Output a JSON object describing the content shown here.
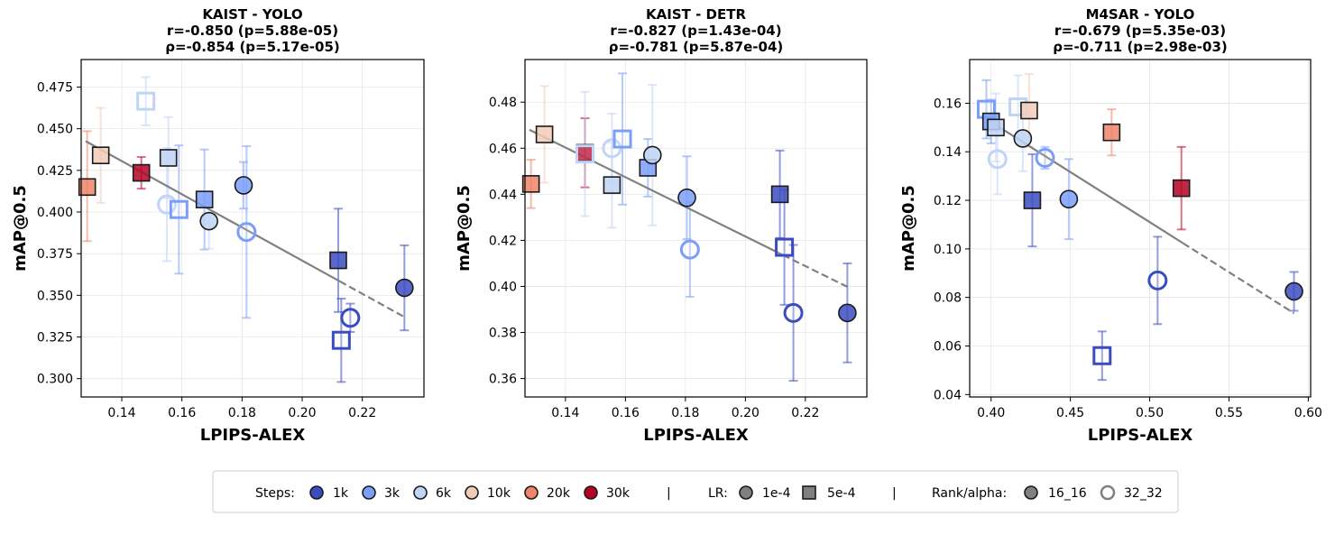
{
  "chart_data": [
    {
      "type": "scatter",
      "title": [
        "KAIST - YOLO",
        "r=-0.850 (p=5.88e-05)",
        "ρ=-0.854 (p=5.17e-05)"
      ],
      "xlabel": "LPIPS-ALEX",
      "ylabel": "mAP@0.5",
      "xlim": [
        0.1265,
        0.2405
      ],
      "ylim": [
        0.289,
        0.4915
      ],
      "xticks": [
        0.14,
        0.16,
        0.18,
        0.2,
        0.22
      ],
      "yticks": [
        0.3,
        0.325,
        0.35,
        0.375,
        0.4,
        0.425,
        0.45,
        0.475
      ],
      "tick_decimals": 2,
      "ytick_decimals": 3,
      "fit": {
        "x0": 0.128,
        "y0": 0.4425,
        "x1": 0.2345,
        "y1": 0.3365,
        "solid_until": 0.2125
      },
      "points": [
        {
          "x": 0.1285,
          "y": 0.415,
          "lo": 0.3825,
          "hi": 0.4485,
          "steps": "20k",
          "lr": "5e-4",
          "rank": "16_16"
        },
        {
          "x": 0.133,
          "y": 0.434,
          "lo": 0.4055,
          "hi": 0.4625,
          "steps": "10k",
          "lr": "5e-4",
          "rank": "16_16"
        },
        {
          "x": 0.1465,
          "y": 0.4235,
          "lo": 0.414,
          "hi": 0.433,
          "steps": "30k",
          "lr": "5e-4",
          "rank": "16_16"
        },
        {
          "x": 0.148,
          "y": 0.4665,
          "lo": 0.452,
          "hi": 0.481,
          "steps": "6k",
          "lr": "5e-4",
          "rank": "32_32"
        },
        {
          "x": 0.1555,
          "y": 0.4325,
          "lo": 0.408,
          "hi": 0.457,
          "steps": "6k",
          "lr": "5e-4",
          "rank": "16_16"
        },
        {
          "x": 0.155,
          "y": 0.4045,
          "lo": 0.3705,
          "hi": 0.4385,
          "steps": "6k",
          "lr": "1e-4",
          "rank": "32_32"
        },
        {
          "x": 0.159,
          "y": 0.4015,
          "lo": 0.363,
          "hi": 0.44,
          "steps": "3k",
          "lr": "5e-4",
          "rank": "32_32"
        },
        {
          "x": 0.1675,
          "y": 0.4075,
          "lo": 0.3775,
          "hi": 0.4375,
          "steps": "3k",
          "lr": "5e-4",
          "rank": "16_16"
        },
        {
          "x": 0.169,
          "y": 0.3945,
          "lo": 0.378,
          "hi": 0.411,
          "steps": "6k",
          "lr": "1e-4",
          "rank": "16_16"
        },
        {
          "x": 0.1805,
          "y": 0.416,
          "lo": 0.402,
          "hi": 0.43,
          "steps": "3k",
          "lr": "1e-4",
          "rank": "16_16"
        },
        {
          "x": 0.1815,
          "y": 0.388,
          "lo": 0.3365,
          "hi": 0.4395,
          "steps": "3k",
          "lr": "1e-4",
          "rank": "32_32"
        },
        {
          "x": 0.212,
          "y": 0.371,
          "lo": 0.34,
          "hi": 0.402,
          "steps": "1k",
          "lr": "5e-4",
          "rank": "16_16"
        },
        {
          "x": 0.213,
          "y": 0.323,
          "lo": 0.298,
          "hi": 0.348,
          "steps": "1k",
          "lr": "5e-4",
          "rank": "32_32"
        },
        {
          "x": 0.216,
          "y": 0.3365,
          "lo": 0.328,
          "hi": 0.345,
          "steps": "1k",
          "lr": "1e-4",
          "rank": "32_32"
        },
        {
          "x": 0.234,
          "y": 0.3545,
          "lo": 0.329,
          "hi": 0.38,
          "steps": "1k",
          "lr": "1e-4",
          "rank": "16_16"
        }
      ]
    },
    {
      "type": "scatter",
      "title": [
        "KAIST - DETR",
        "r=-0.827 (p=1.43e-04)",
        "ρ=-0.781 (p=5.87e-04)"
      ],
      "xlabel": "LPIPS-ALEX",
      "ylabel": "mAP@0.5",
      "xlim": [
        0.1265,
        0.2405
      ],
      "ylim": [
        0.352,
        0.4985
      ],
      "xticks": [
        0.14,
        0.16,
        0.18,
        0.2,
        0.22
      ],
      "yticks": [
        0.36,
        0.38,
        0.4,
        0.42,
        0.44,
        0.46,
        0.48
      ],
      "tick_decimals": 2,
      "ytick_decimals": 2,
      "fit": {
        "x0": 0.128,
        "y0": 0.468,
        "x1": 0.2345,
        "y1": 0.3995,
        "solid_until": 0.2125
      },
      "points": [
        {
          "x": 0.1285,
          "y": 0.4445,
          "lo": 0.434,
          "hi": 0.455,
          "steps": "20k",
          "lr": "5e-4",
          "rank": "16_16"
        },
        {
          "x": 0.133,
          "y": 0.466,
          "lo": 0.445,
          "hi": 0.487,
          "steps": "10k",
          "lr": "5e-4",
          "rank": "16_16"
        },
        {
          "x": 0.1465,
          "y": 0.458,
          "lo": 0.443,
          "hi": 0.473,
          "steps": "30k",
          "lr": "5e-4",
          "rank": "16_16"
        },
        {
          "x": 0.1465,
          "y": 0.4575,
          "lo": 0.4305,
          "hi": 0.4845,
          "steps": "6k",
          "lr": "5e-4",
          "rank": "32_32"
        },
        {
          "x": 0.1555,
          "y": 0.46,
          "lo": 0.445,
          "hi": 0.475,
          "steps": "6k",
          "lr": "1e-4",
          "rank": "32_32"
        },
        {
          "x": 0.1555,
          "y": 0.444,
          "lo": 0.4255,
          "hi": 0.4625,
          "steps": "6k",
          "lr": "5e-4",
          "rank": "16_16"
        },
        {
          "x": 0.159,
          "y": 0.464,
          "lo": 0.4355,
          "hi": 0.4925,
          "steps": "3k",
          "lr": "5e-4",
          "rank": "32_32"
        },
        {
          "x": 0.1675,
          "y": 0.4515,
          "lo": 0.439,
          "hi": 0.464,
          "steps": "3k",
          "lr": "5e-4",
          "rank": "16_16"
        },
        {
          "x": 0.169,
          "y": 0.457,
          "lo": 0.4265,
          "hi": 0.4875,
          "steps": "6k",
          "lr": "1e-4",
          "rank": "16_16"
        },
        {
          "x": 0.1805,
          "y": 0.4385,
          "lo": 0.4205,
          "hi": 0.4565,
          "steps": "3k",
          "lr": "1e-4",
          "rank": "16_16"
        },
        {
          "x": 0.1815,
          "y": 0.416,
          "lo": 0.3955,
          "hi": 0.4365,
          "steps": "3k",
          "lr": "1e-4",
          "rank": "32_32"
        },
        {
          "x": 0.2115,
          "y": 0.44,
          "lo": 0.421,
          "hi": 0.459,
          "steps": "1k",
          "lr": "5e-4",
          "rank": "16_16"
        },
        {
          "x": 0.213,
          "y": 0.417,
          "lo": 0.392,
          "hi": 0.442,
          "steps": "1k",
          "lr": "5e-4",
          "rank": "32_32"
        },
        {
          "x": 0.216,
          "y": 0.3885,
          "lo": 0.359,
          "hi": 0.418,
          "steps": "1k",
          "lr": "1e-4",
          "rank": "32_32"
        },
        {
          "x": 0.234,
          "y": 0.3885,
          "lo": 0.367,
          "hi": 0.41,
          "steps": "1k",
          "lr": "1e-4",
          "rank": "16_16"
        }
      ]
    },
    {
      "type": "scatter",
      "title": [
        "M4SAR - YOLO",
        "r=-0.679 (p=5.35e-03)",
        "ρ=-0.711 (p=2.98e-03)"
      ],
      "xlabel": "LPIPS-ALEX",
      "ylabel": "mAP@0.5",
      "xlim": [
        0.3865,
        0.6015
      ],
      "ylim": [
        0.039,
        0.178
      ],
      "xticks": [
        0.4,
        0.45,
        0.5,
        0.55,
        0.6
      ],
      "yticks": [
        0.04,
        0.06,
        0.08,
        0.1,
        0.12,
        0.14,
        0.16
      ],
      "tick_decimals": 2,
      "ytick_decimals": 2,
      "fit": {
        "x0": 0.397,
        "y0": 0.1535,
        "x1": 0.591,
        "y1": 0.0735,
        "solid_until": 0.521
      },
      "points": [
        {
          "x": 0.397,
          "y": 0.1575,
          "lo": 0.1455,
          "hi": 0.1695,
          "steps": "3k",
          "lr": "5e-4",
          "rank": "32_32"
        },
        {
          "x": 0.4,
          "y": 0.1525,
          "lo": 0.1435,
          "hi": 0.1615,
          "steps": "3k",
          "lr": "5e-4",
          "rank": "16_16"
        },
        {
          "x": 0.403,
          "y": 0.15,
          "lo": 0.136,
          "hi": 0.164,
          "steps": "6k",
          "lr": "5e-4",
          "rank": "16_16"
        },
        {
          "x": 0.404,
          "y": 0.137,
          "lo": 0.1225,
          "hi": 0.1515,
          "steps": "6k",
          "lr": "1e-4",
          "rank": "32_32"
        },
        {
          "x": 0.417,
          "y": 0.1585,
          "lo": 0.1455,
          "hi": 0.1715,
          "steps": "6k",
          "lr": "5e-4",
          "rank": "32_32"
        },
        {
          "x": 0.42,
          "y": 0.1455,
          "lo": 0.132,
          "hi": 0.159,
          "steps": "6k",
          "lr": "1e-4",
          "rank": "16_16"
        },
        {
          "x": 0.424,
          "y": 0.157,
          "lo": 0.142,
          "hi": 0.172,
          "steps": "10k",
          "lr": "5e-4",
          "rank": "16_16"
        },
        {
          "x": 0.426,
          "y": 0.12,
          "lo": 0.101,
          "hi": 0.139,
          "steps": "1k",
          "lr": "5e-4",
          "rank": "16_16"
        },
        {
          "x": 0.434,
          "y": 0.1375,
          "lo": 0.133,
          "hi": 0.142,
          "steps": "3k",
          "lr": "1e-4",
          "rank": "32_32"
        },
        {
          "x": 0.449,
          "y": 0.1205,
          "lo": 0.104,
          "hi": 0.137,
          "steps": "3k",
          "lr": "1e-4",
          "rank": "16_16"
        },
        {
          "x": 0.47,
          "y": 0.056,
          "lo": 0.046,
          "hi": 0.066,
          "steps": "1k",
          "lr": "5e-4",
          "rank": "32_32"
        },
        {
          "x": 0.476,
          "y": 0.148,
          "lo": 0.1385,
          "hi": 0.1575,
          "steps": "20k",
          "lr": "5e-4",
          "rank": "16_16"
        },
        {
          "x": 0.505,
          "y": 0.087,
          "lo": 0.069,
          "hi": 0.105,
          "steps": "1k",
          "lr": "1e-4",
          "rank": "32_32"
        },
        {
          "x": 0.52,
          "y": 0.125,
          "lo": 0.108,
          "hi": 0.142,
          "steps": "30k",
          "lr": "5e-4",
          "rank": "16_16"
        },
        {
          "x": 0.591,
          "y": 0.0825,
          "lo": 0.0745,
          "hi": 0.0905,
          "steps": "1k",
          "lr": "1e-4",
          "rank": "16_16"
        }
      ]
    }
  ],
  "legend": {
    "steps_label": "Steps:",
    "steps": [
      {
        "label": "1k",
        "color": "#3b4cc0"
      },
      {
        "label": "3k",
        "color": "#7b9ff9"
      },
      {
        "label": "6k",
        "color": "#c0d4f5"
      },
      {
        "label": "10k",
        "color": "#f2cbb7"
      },
      {
        "label": "20k",
        "color": "#ee8468"
      },
      {
        "label": "30k",
        "color": "#b40426"
      }
    ],
    "sep": "|",
    "lr_label": "LR:",
    "lr": [
      {
        "label": "1e-4",
        "marker": "circle"
      },
      {
        "label": "5e-4",
        "marker": "square"
      }
    ],
    "rank_label": "Rank/alpha:",
    "rank": [
      {
        "label": "16_16",
        "style": "filled"
      },
      {
        "label": "32_32",
        "style": "hollow"
      }
    ],
    "marker_gray": "#808080"
  },
  "colors": {
    "fit_line": "#808080",
    "edge": "#1a1a1a",
    "grid": "#e6e6e6"
  }
}
